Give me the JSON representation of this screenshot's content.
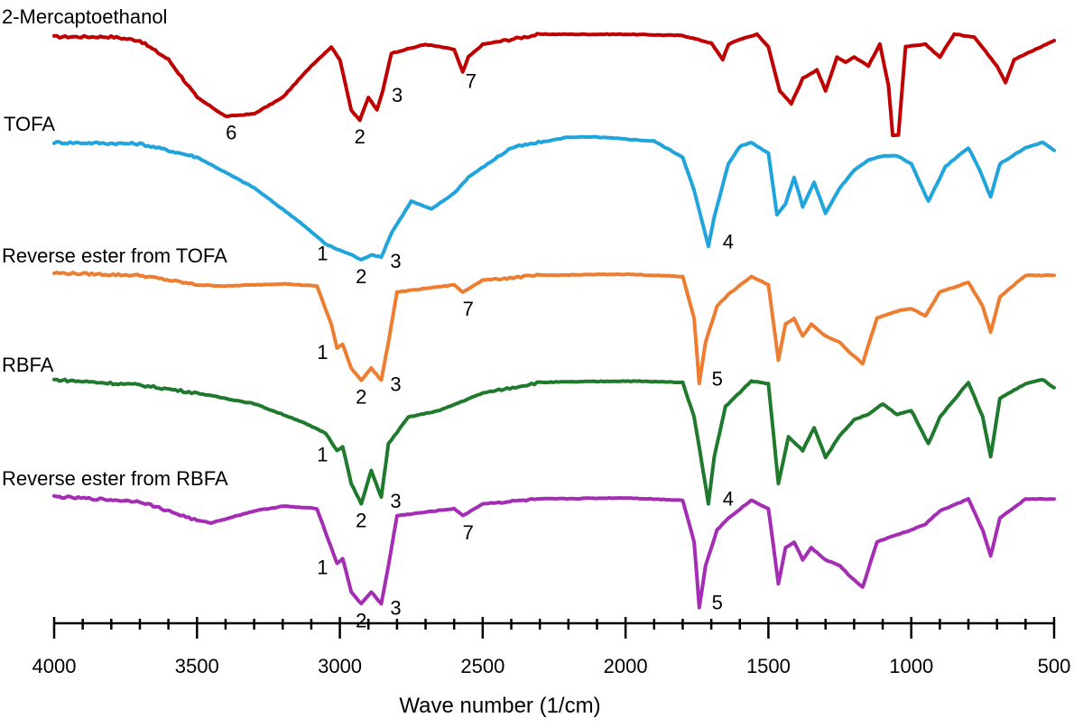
{
  "chart_data": {
    "type": "line",
    "title": "",
    "xlabel": "Wave number (1/cm)",
    "ylabel": "",
    "xlim": [
      4000,
      500
    ],
    "x_reversed": true,
    "grid": false,
    "x_ticks": [
      4000,
      3500,
      3000,
      2500,
      2000,
      1500,
      1000,
      500
    ],
    "y_axis": "stacked transmittance (arbitrary, no scale shown)",
    "series": [
      {
        "name": "2-Mercaptoethanol",
        "color": "#c00000",
        "points": [
          [
            4000,
            0.98
          ],
          [
            3800,
            0.98
          ],
          [
            3700,
            0.95
          ],
          [
            3600,
            0.8
          ],
          [
            3500,
            0.5
          ],
          [
            3400,
            0.35
          ],
          [
            3300,
            0.37
          ],
          [
            3200,
            0.5
          ],
          [
            3100,
            0.75
          ],
          [
            3030,
            0.9
          ],
          [
            3000,
            0.8
          ],
          [
            2960,
            0.4
          ],
          [
            2930,
            0.32
          ],
          [
            2900,
            0.5
          ],
          [
            2870,
            0.4
          ],
          [
            2850,
            0.55
          ],
          [
            2820,
            0.85
          ],
          [
            2700,
            0.92
          ],
          [
            2600,
            0.88
          ],
          [
            2570,
            0.7
          ],
          [
            2550,
            0.82
          ],
          [
            2500,
            0.92
          ],
          [
            2400,
            0.96
          ],
          [
            2300,
            1.0
          ],
          [
            2000,
            1.0
          ],
          [
            1800,
            0.99
          ],
          [
            1700,
            0.93
          ],
          [
            1660,
            0.8
          ],
          [
            1640,
            0.92
          ],
          [
            1600,
            0.96
          ],
          [
            1540,
            1.0
          ],
          [
            1500,
            0.9
          ],
          [
            1460,
            0.55
          ],
          [
            1420,
            0.45
          ],
          [
            1380,
            0.65
          ],
          [
            1330,
            0.72
          ],
          [
            1300,
            0.55
          ],
          [
            1260,
            0.82
          ],
          [
            1230,
            0.78
          ],
          [
            1200,
            0.82
          ],
          [
            1150,
            0.75
          ],
          [
            1110,
            0.92
          ],
          [
            1080,
            0.6
          ],
          [
            1065,
            0.2
          ],
          [
            1045,
            0.2
          ],
          [
            1020,
            0.9
          ],
          [
            950,
            0.92
          ],
          [
            900,
            0.82
          ],
          [
            850,
            1.0
          ],
          [
            780,
            0.98
          ],
          [
            700,
            0.75
          ],
          [
            670,
            0.62
          ],
          [
            640,
            0.8
          ],
          [
            500,
            0.95
          ]
        ]
      },
      {
        "name": "TOFA",
        "color": "#20a4dc",
        "points": [
          [
            4000,
            0.96
          ],
          [
            3700,
            0.95
          ],
          [
            3500,
            0.85
          ],
          [
            3300,
            0.62
          ],
          [
            3150,
            0.38
          ],
          [
            3050,
            0.2
          ],
          [
            3010,
            0.16
          ],
          [
            2960,
            0.12
          ],
          [
            2925,
            0.08
          ],
          [
            2890,
            0.12
          ],
          [
            2855,
            0.1
          ],
          [
            2820,
            0.28
          ],
          [
            2750,
            0.52
          ],
          [
            2680,
            0.46
          ],
          [
            2600,
            0.58
          ],
          [
            2550,
            0.7
          ],
          [
            2400,
            0.92
          ],
          [
            2200,
            1.0
          ],
          [
            2100,
            1.0
          ],
          [
            1900,
            0.97
          ],
          [
            1800,
            0.85
          ],
          [
            1760,
            0.6
          ],
          [
            1710,
            0.18
          ],
          [
            1690,
            0.4
          ],
          [
            1640,
            0.8
          ],
          [
            1600,
            0.93
          ],
          [
            1560,
            0.96
          ],
          [
            1500,
            0.88
          ],
          [
            1470,
            0.42
          ],
          [
            1440,
            0.5
          ],
          [
            1410,
            0.7
          ],
          [
            1380,
            0.48
          ],
          [
            1340,
            0.66
          ],
          [
            1300,
            0.43
          ],
          [
            1250,
            0.62
          ],
          [
            1200,
            0.75
          ],
          [
            1150,
            0.83
          ],
          [
            1100,
            0.86
          ],
          [
            1050,
            0.86
          ],
          [
            1000,
            0.8
          ],
          [
            940,
            0.52
          ],
          [
            880,
            0.78
          ],
          [
            800,
            0.92
          ],
          [
            760,
            0.75
          ],
          [
            722,
            0.55
          ],
          [
            690,
            0.8
          ],
          [
            600,
            0.92
          ],
          [
            540,
            0.96
          ],
          [
            500,
            0.9
          ]
        ]
      },
      {
        "name": "Reverse ester  from TOFA",
        "color": "#ed7d31",
        "points": [
          [
            4000,
            0.98
          ],
          [
            3700,
            0.96
          ],
          [
            3500,
            0.88
          ],
          [
            3400,
            0.87
          ],
          [
            3200,
            0.89
          ],
          [
            3080,
            0.87
          ],
          [
            3030,
            0.55
          ],
          [
            3010,
            0.35
          ],
          [
            2990,
            0.38
          ],
          [
            2960,
            0.18
          ],
          [
            2925,
            0.08
          ],
          [
            2890,
            0.18
          ],
          [
            2855,
            0.08
          ],
          [
            2830,
            0.4
          ],
          [
            2800,
            0.82
          ],
          [
            2700,
            0.85
          ],
          [
            2600,
            0.88
          ],
          [
            2570,
            0.82
          ],
          [
            2500,
            0.92
          ],
          [
            2300,
            0.96
          ],
          [
            2000,
            0.97
          ],
          [
            1800,
            0.95
          ],
          [
            1760,
            0.6
          ],
          [
            1742,
            0.05
          ],
          [
            1720,
            0.4
          ],
          [
            1680,
            0.7
          ],
          [
            1640,
            0.8
          ],
          [
            1560,
            0.95
          ],
          [
            1500,
            0.88
          ],
          [
            1465,
            0.25
          ],
          [
            1440,
            0.55
          ],
          [
            1410,
            0.6
          ],
          [
            1380,
            0.45
          ],
          [
            1350,
            0.55
          ],
          [
            1300,
            0.45
          ],
          [
            1250,
            0.4
          ],
          [
            1210,
            0.3
          ],
          [
            1170,
            0.22
          ],
          [
            1120,
            0.6
          ],
          [
            1050,
            0.66
          ],
          [
            1000,
            0.68
          ],
          [
            950,
            0.62
          ],
          [
            900,
            0.82
          ],
          [
            800,
            0.9
          ],
          [
            750,
            0.7
          ],
          [
            722,
            0.48
          ],
          [
            690,
            0.78
          ],
          [
            600,
            0.96
          ],
          [
            500,
            0.96
          ]
        ]
      },
      {
        "name": "RBFA",
        "color": "#1f7a2e",
        "points": [
          [
            4000,
            0.98
          ],
          [
            3700,
            0.94
          ],
          [
            3500,
            0.88
          ],
          [
            3300,
            0.8
          ],
          [
            3150,
            0.68
          ],
          [
            3050,
            0.58
          ],
          [
            3010,
            0.45
          ],
          [
            2990,
            0.48
          ],
          [
            2960,
            0.2
          ],
          [
            2925,
            0.05
          ],
          [
            2890,
            0.3
          ],
          [
            2855,
            0.1
          ],
          [
            2830,
            0.5
          ],
          [
            2760,
            0.7
          ],
          [
            2650,
            0.75
          ],
          [
            2500,
            0.88
          ],
          [
            2300,
            0.96
          ],
          [
            2000,
            0.97
          ],
          [
            1800,
            0.96
          ],
          [
            1760,
            0.7
          ],
          [
            1740,
            0.45
          ],
          [
            1710,
            0.05
          ],
          [
            1690,
            0.4
          ],
          [
            1650,
            0.78
          ],
          [
            1560,
            0.97
          ],
          [
            1500,
            0.95
          ],
          [
            1465,
            0.2
          ],
          [
            1430,
            0.55
          ],
          [
            1380,
            0.45
          ],
          [
            1340,
            0.62
          ],
          [
            1300,
            0.4
          ],
          [
            1250,
            0.56
          ],
          [
            1200,
            0.68
          ],
          [
            1150,
            0.72
          ],
          [
            1100,
            0.8
          ],
          [
            1050,
            0.72
          ],
          [
            1000,
            0.75
          ],
          [
            940,
            0.5
          ],
          [
            900,
            0.7
          ],
          [
            800,
            0.96
          ],
          [
            750,
            0.7
          ],
          [
            722,
            0.4
          ],
          [
            690,
            0.84
          ],
          [
            600,
            0.95
          ],
          [
            540,
            0.98
          ],
          [
            500,
            0.92
          ]
        ]
      },
      {
        "name": "Reverse ester  from RBFA",
        "color": "#a42db3",
        "points": [
          [
            4000,
            0.98
          ],
          [
            3700,
            0.94
          ],
          [
            3500,
            0.78
          ],
          [
            3450,
            0.76
          ],
          [
            3300,
            0.86
          ],
          [
            3200,
            0.9
          ],
          [
            3080,
            0.88
          ],
          [
            3030,
            0.55
          ],
          [
            3010,
            0.42
          ],
          [
            2990,
            0.46
          ],
          [
            2960,
            0.18
          ],
          [
            2925,
            0.08
          ],
          [
            2890,
            0.18
          ],
          [
            2855,
            0.08
          ],
          [
            2830,
            0.4
          ],
          [
            2800,
            0.82
          ],
          [
            2700,
            0.85
          ],
          [
            2600,
            0.88
          ],
          [
            2570,
            0.82
          ],
          [
            2500,
            0.92
          ],
          [
            2300,
            0.96
          ],
          [
            2000,
            0.97
          ],
          [
            1800,
            0.95
          ],
          [
            1760,
            0.6
          ],
          [
            1742,
            0.05
          ],
          [
            1720,
            0.4
          ],
          [
            1680,
            0.7
          ],
          [
            1640,
            0.8
          ],
          [
            1560,
            0.95
          ],
          [
            1500,
            0.88
          ],
          [
            1465,
            0.25
          ],
          [
            1440,
            0.55
          ],
          [
            1410,
            0.6
          ],
          [
            1380,
            0.45
          ],
          [
            1350,
            0.55
          ],
          [
            1300,
            0.45
          ],
          [
            1250,
            0.4
          ],
          [
            1210,
            0.3
          ],
          [
            1170,
            0.22
          ],
          [
            1120,
            0.6
          ],
          [
            1050,
            0.66
          ],
          [
            1000,
            0.7
          ],
          [
            950,
            0.75
          ],
          [
            900,
            0.86
          ],
          [
            800,
            0.96
          ],
          [
            750,
            0.7
          ],
          [
            722,
            0.48
          ],
          [
            690,
            0.8
          ],
          [
            600,
            0.96
          ],
          [
            500,
            0.96
          ]
        ]
      }
    ],
    "annotations": [
      {
        "series": 0,
        "text": "6",
        "x": 3380
      },
      {
        "series": 0,
        "text": "2",
        "x": 2930
      },
      {
        "series": 0,
        "text": "3",
        "x": 2850
      },
      {
        "series": 0,
        "text": "7",
        "x": 2560
      },
      {
        "series": 1,
        "text": "1",
        "x": 3010
      },
      {
        "series": 1,
        "text": "2",
        "x": 2925
      },
      {
        "series": 1,
        "text": "3",
        "x": 2855
      },
      {
        "series": 1,
        "text": "4",
        "x": 1710
      },
      {
        "series": 2,
        "text": "1",
        "x": 3010
      },
      {
        "series": 2,
        "text": "2",
        "x": 2925
      },
      {
        "series": 2,
        "text": "3",
        "x": 2855
      },
      {
        "series": 2,
        "text": "7",
        "x": 2570
      },
      {
        "series": 2,
        "text": "5",
        "x": 1742
      },
      {
        "series": 3,
        "text": "1",
        "x": 3010
      },
      {
        "series": 3,
        "text": "2",
        "x": 2925
      },
      {
        "series": 3,
        "text": "3",
        "x": 2855
      },
      {
        "series": 3,
        "text": "4",
        "x": 1710
      },
      {
        "series": 4,
        "text": "1",
        "x": 3010
      },
      {
        "series": 4,
        "text": "2",
        "x": 2925
      },
      {
        "series": 4,
        "text": "3",
        "x": 2855
      },
      {
        "series": 4,
        "text": "7",
        "x": 2570
      },
      {
        "series": 4,
        "text": "5",
        "x": 1742
      }
    ]
  }
}
